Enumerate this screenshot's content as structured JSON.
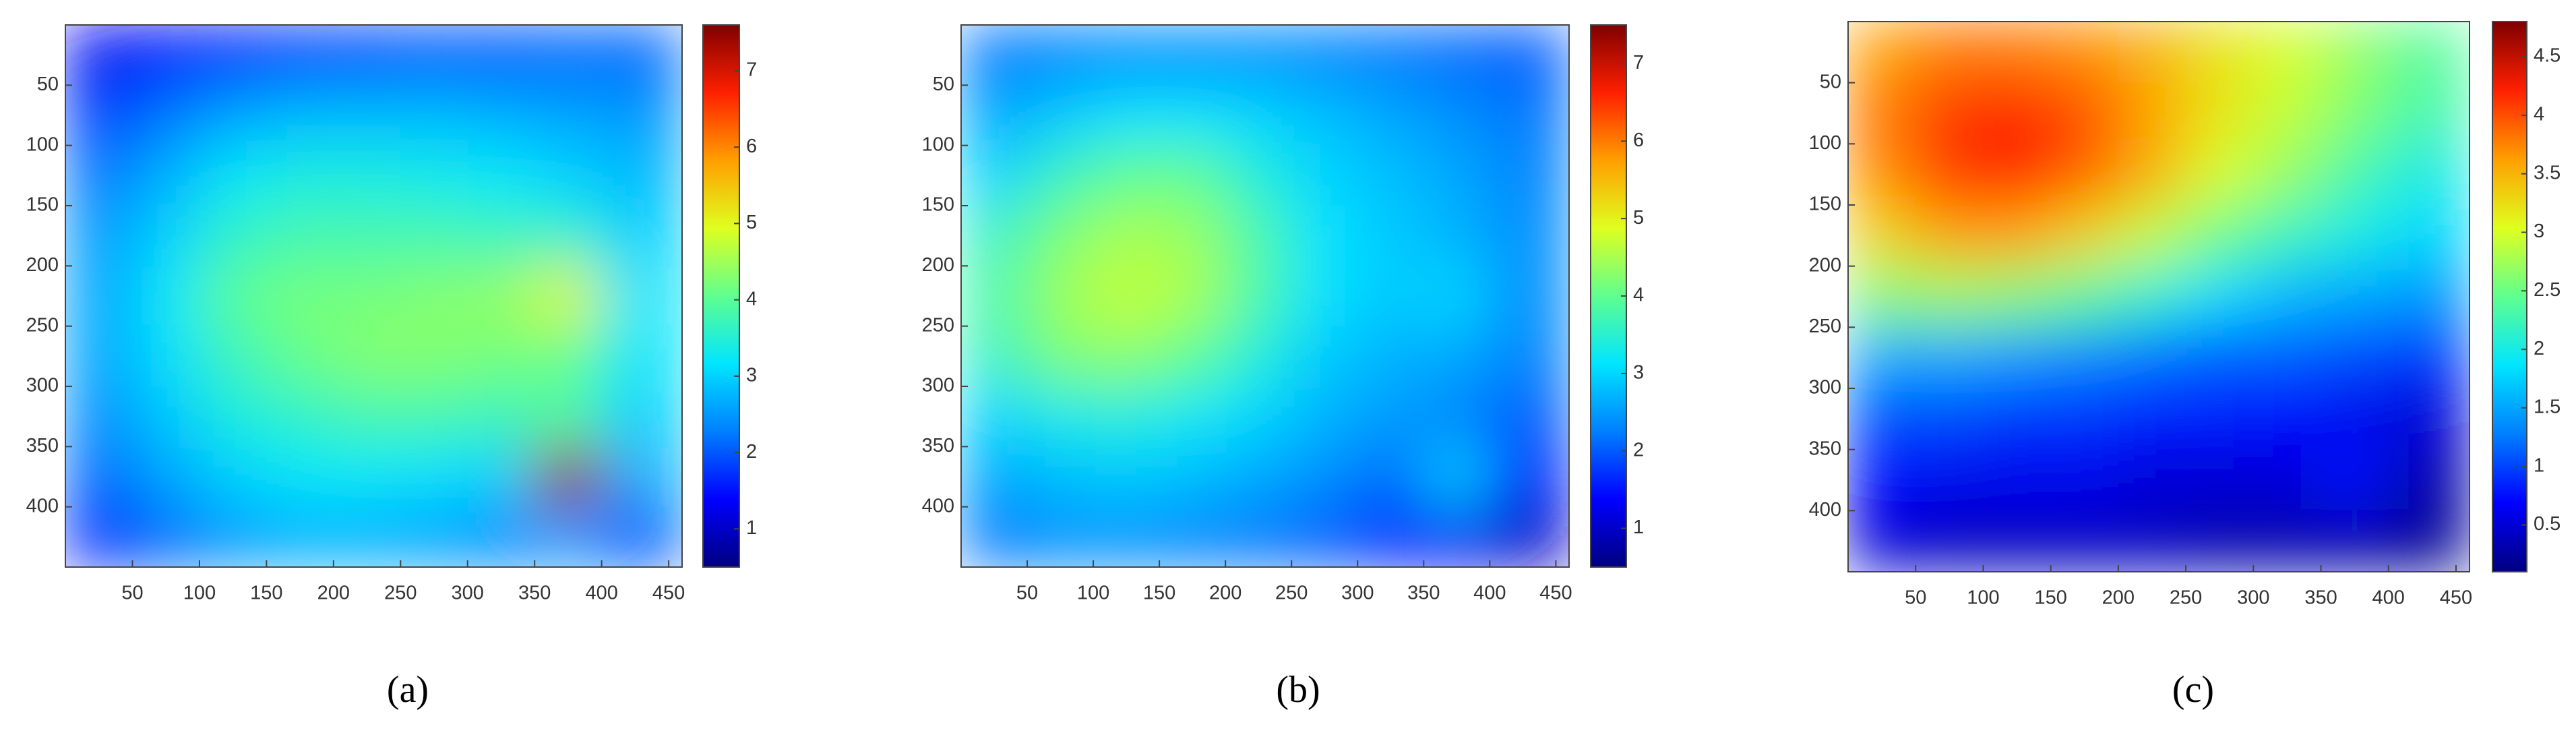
{
  "chart_data": [
    {
      "type": "heatmap",
      "label": "(a)",
      "xbins": [
        0,
        50,
        100,
        150,
        200,
        250,
        300,
        350,
        400,
        460
      ],
      "ybins": [
        0,
        50,
        100,
        150,
        200,
        250,
        300,
        350,
        400,
        450
      ],
      "xlim": [
        0,
        460
      ],
      "ylim": [
        0,
        450
      ],
      "xticks": [
        50,
        100,
        150,
        200,
        250,
        300,
        350,
        400,
        450
      ],
      "yticks": [
        50,
        100,
        150,
        200,
        250,
        300,
        350,
        400
      ],
      "clim": [
        0.5,
        7.6
      ],
      "cticks": [
        1,
        2,
        3,
        4,
        5,
        6,
        7
      ],
      "colormap": [
        "#00007f",
        "#0000ff",
        "#007fff",
        "#00e5ff",
        "#5fff8f",
        "#dfff1f",
        "#ff9f00",
        "#ff2000",
        "#7f0000"
      ],
      "values": [
        [
          1.3,
          1.4,
          1.6,
          1.8,
          1.9,
          2.0,
          2.0,
          2.1,
          2.1
        ],
        [
          1.8,
          2.2,
          2.6,
          2.8,
          2.8,
          2.8,
          2.7,
          2.6,
          2.5
        ],
        [
          2.2,
          2.7,
          3.2,
          3.4,
          3.4,
          3.3,
          3.2,
          3.0,
          2.8
        ],
        [
          2.5,
          3.0,
          3.6,
          3.8,
          3.8,
          3.8,
          3.7,
          3.6,
          3.0
        ],
        [
          2.6,
          3.2,
          4.0,
          4.2,
          4.2,
          4.3,
          4.4,
          5.0,
          3.2
        ],
        [
          2.6,
          3.1,
          3.7,
          4.1,
          4.3,
          4.3,
          4.2,
          4.1,
          3.2
        ],
        [
          2.4,
          2.9,
          3.4,
          3.6,
          3.8,
          3.8,
          3.7,
          3.9,
          3.0
        ],
        [
          2.1,
          2.6,
          3.0,
          3.2,
          3.2,
          3.1,
          3.0,
          7.4,
          2.7
        ],
        [
          1.6,
          2.1,
          2.5,
          2.7,
          2.7,
          2.6,
          2.4,
          2.5,
          2.0
        ]
      ]
    },
    {
      "type": "heatmap",
      "label": "(b)",
      "xbins": [
        0,
        50,
        100,
        150,
        200,
        250,
        300,
        350,
        400,
        460
      ],
      "ybins": [
        0,
        50,
        100,
        150,
        200,
        250,
        300,
        350,
        400,
        450
      ],
      "xlim": [
        0,
        460
      ],
      "ylim": [
        0,
        450
      ],
      "xticks": [
        50,
        100,
        150,
        200,
        250,
        300,
        350,
        400,
        450
      ],
      "yticks": [
        50,
        100,
        150,
        200,
        250,
        300,
        350,
        400
      ],
      "clim": [
        0.5,
        7.5
      ],
      "cticks": [
        1,
        2,
        3,
        4,
        5,
        6,
        7
      ],
      "colormap": [
        "#00007f",
        "#0000ff",
        "#007fff",
        "#00e5ff",
        "#5fff8f",
        "#dfff1f",
        "#ff9f00",
        "#ff2000",
        "#7f0000"
      ],
      "values": [
        [
          2.2,
          2.3,
          2.4,
          2.4,
          2.4,
          2.3,
          2.2,
          2.1,
          2.0
        ],
        [
          2.6,
          2.9,
          3.1,
          3.1,
          3.0,
          2.8,
          2.6,
          2.4,
          2.2
        ],
        [
          3.0,
          3.6,
          4.0,
          4.0,
          3.4,
          3.0,
          2.8,
          2.6,
          2.3
        ],
        [
          3.6,
          4.2,
          4.5,
          4.4,
          3.8,
          3.1,
          2.9,
          2.7,
          2.4
        ],
        [
          3.8,
          4.4,
          4.7,
          4.5,
          3.8,
          3.1,
          2.9,
          3.0,
          2.4
        ],
        [
          3.6,
          4.2,
          4.3,
          4.0,
          3.4,
          2.9,
          2.7,
          2.6,
          2.3
        ],
        [
          3.0,
          3.3,
          3.4,
          3.2,
          3.0,
          2.7,
          2.5,
          2.3,
          2.0
        ],
        [
          2.6,
          2.8,
          2.9,
          2.8,
          2.6,
          2.4,
          2.1,
          2.9,
          1.6
        ],
        [
          2.2,
          2.4,
          2.4,
          2.3,
          2.2,
          2.0,
          1.6,
          1.3,
          1.0
        ]
      ]
    },
    {
      "type": "heatmap",
      "label": "(c)",
      "xbins": [
        0,
        50,
        100,
        150,
        200,
        250,
        300,
        350,
        400,
        460
      ],
      "ybins": [
        0,
        50,
        100,
        150,
        200,
        250,
        300,
        350,
        400,
        450
      ],
      "xlim": [
        0,
        460
      ],
      "ylim": [
        0,
        450
      ],
      "xticks": [
        50,
        100,
        150,
        200,
        250,
        300,
        350,
        400,
        450
      ],
      "yticks": [
        50,
        100,
        150,
        200,
        250,
        300,
        350,
        400
      ],
      "clim": [
        0.1,
        4.8
      ],
      "cticks": [
        0.5,
        1,
        1.5,
        2,
        2.5,
        3,
        3.5,
        4,
        4.5
      ],
      "colormap": [
        "#00007f",
        "#0000ff",
        "#007fff",
        "#00e5ff",
        "#5fff8f",
        "#dfff1f",
        "#ff9f00",
        "#ff2000",
        "#7f0000"
      ],
      "values": [
        [
          3.6,
          3.8,
          3.8,
          3.7,
          3.5,
          3.2,
          3.0,
          2.7,
          2.4
        ],
        [
          3.8,
          4.1,
          4.2,
          4.0,
          3.6,
          3.2,
          2.9,
          2.6,
          2.3
        ],
        [
          3.7,
          4.1,
          4.2,
          3.9,
          3.5,
          3.0,
          2.7,
          2.3,
          2.0
        ],
        [
          3.3,
          3.6,
          3.6,
          3.3,
          2.9,
          2.5,
          2.2,
          2.0,
          1.8
        ],
        [
          2.6,
          2.7,
          2.6,
          2.4,
          2.1,
          1.8,
          1.6,
          1.5,
          1.4
        ],
        [
          1.5,
          1.5,
          1.4,
          1.3,
          1.2,
          1.1,
          1.1,
          1.0,
          0.9
        ],
        [
          1.0,
          1.0,
          0.9,
          0.9,
          0.8,
          0.8,
          0.7,
          0.6,
          0.5
        ],
        [
          0.7,
          0.6,
          0.6,
          0.6,
          0.5,
          0.5,
          0.5,
          0.8,
          0.3
        ],
        [
          0.5,
          0.4,
          0.4,
          0.4,
          0.4,
          0.3,
          0.3,
          0.3,
          0.2
        ]
      ]
    }
  ]
}
